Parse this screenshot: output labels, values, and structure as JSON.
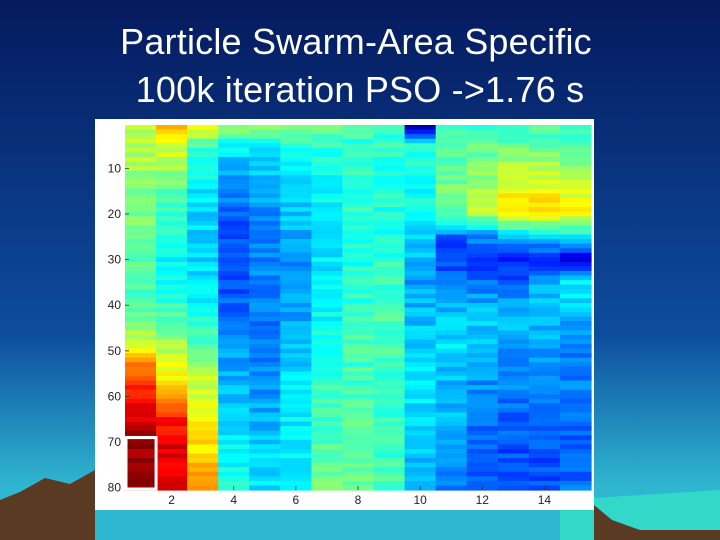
{
  "slide": {
    "title_line1": "Particle Swarm-Area Specific",
    "title_line2": "100k iteration PSO ->1.76 s"
  },
  "colors": {
    "sky_top": "#051a5e",
    "sky_mid": "#0d4d9e",
    "sky_horizon": "#2fb6d0",
    "sea": "#32d8c8",
    "mountain": "#5a3a22",
    "highlight_box": "#ffffff"
  },
  "chart_data": {
    "type": "heatmap",
    "colormap": "jet",
    "rows": 80,
    "cols": 15,
    "xlim": [
      0.5,
      15.5
    ],
    "ylim": [
      80.5,
      0.5
    ],
    "x_ticks": [
      2,
      4,
      6,
      8,
      10,
      12,
      14
    ],
    "y_ticks": [
      10,
      20,
      30,
      40,
      50,
      60,
      70,
      80
    ],
    "grid": false,
    "row_knots": [
      1,
      5,
      10,
      15,
      20,
      25,
      30,
      35,
      40,
      45,
      50,
      55,
      60,
      65,
      70,
      75,
      80
    ],
    "column_profiles": [
      [
        0.56,
        0.55,
        0.54,
        0.5,
        0.5,
        0.48,
        0.45,
        0.45,
        0.46,
        0.52,
        0.65,
        0.8,
        0.86,
        0.92,
        0.96,
        0.98,
        1.0
      ],
      [
        0.7,
        0.6,
        0.52,
        0.45,
        0.42,
        0.4,
        0.38,
        0.4,
        0.42,
        0.48,
        0.55,
        0.62,
        0.72,
        0.85,
        0.9,
        0.9,
        0.92
      ],
      [
        0.62,
        0.45,
        0.38,
        0.35,
        0.34,
        0.33,
        0.33,
        0.34,
        0.37,
        0.42,
        0.48,
        0.55,
        0.6,
        0.62,
        0.65,
        0.68,
        0.72
      ],
      [
        0.52,
        0.38,
        0.3,
        0.25,
        0.22,
        0.2,
        0.2,
        0.2,
        0.22,
        0.25,
        0.28,
        0.3,
        0.32,
        0.34,
        0.36,
        0.38,
        0.4
      ],
      [
        0.5,
        0.38,
        0.32,
        0.28,
        0.27,
        0.26,
        0.26,
        0.25,
        0.24,
        0.24,
        0.25,
        0.26,
        0.28,
        0.3,
        0.32,
        0.34,
        0.35
      ],
      [
        0.48,
        0.4,
        0.36,
        0.33,
        0.32,
        0.3,
        0.28,
        0.27,
        0.28,
        0.3,
        0.32,
        0.34,
        0.36,
        0.36,
        0.35,
        0.36,
        0.38
      ],
      [
        0.5,
        0.42,
        0.4,
        0.38,
        0.37,
        0.36,
        0.35,
        0.35,
        0.36,
        0.38,
        0.4,
        0.42,
        0.44,
        0.45,
        0.46,
        0.48,
        0.5
      ],
      [
        0.46,
        0.42,
        0.41,
        0.42,
        0.42,
        0.41,
        0.4,
        0.41,
        0.42,
        0.43,
        0.44,
        0.44,
        0.45,
        0.46,
        0.47,
        0.48,
        0.48
      ],
      [
        0.44,
        0.42,
        0.41,
        0.41,
        0.4,
        0.4,
        0.42,
        0.43,
        0.44,
        0.45,
        0.44,
        0.43,
        0.42,
        0.42,
        0.43,
        0.44,
        0.44
      ],
      [
        0.08,
        0.4,
        0.41,
        0.38,
        0.4,
        0.34,
        0.3,
        0.28,
        0.3,
        0.32,
        0.33,
        0.34,
        0.35,
        0.34,
        0.33,
        0.3,
        0.28
      ],
      [
        0.42,
        0.44,
        0.46,
        0.5,
        0.47,
        0.22,
        0.18,
        0.26,
        0.3,
        0.33,
        0.34,
        0.32,
        0.3,
        0.3,
        0.28,
        0.26,
        0.25
      ],
      [
        0.4,
        0.47,
        0.5,
        0.56,
        0.55,
        0.26,
        0.14,
        0.24,
        0.3,
        0.32,
        0.3,
        0.28,
        0.26,
        0.24,
        0.22,
        0.22,
        0.22
      ],
      [
        0.44,
        0.48,
        0.55,
        0.62,
        0.65,
        0.3,
        0.14,
        0.22,
        0.28,
        0.3,
        0.28,
        0.26,
        0.24,
        0.22,
        0.2,
        0.2,
        0.2
      ],
      [
        0.45,
        0.46,
        0.55,
        0.62,
        0.66,
        0.32,
        0.16,
        0.3,
        0.32,
        0.3,
        0.28,
        0.26,
        0.24,
        0.22,
        0.2,
        0.2,
        0.21
      ],
      [
        0.44,
        0.44,
        0.5,
        0.58,
        0.62,
        0.36,
        0.1,
        0.36,
        0.34,
        0.26,
        0.24,
        0.25,
        0.25,
        0.23,
        0.22,
        0.22,
        0.24
      ]
    ]
  }
}
